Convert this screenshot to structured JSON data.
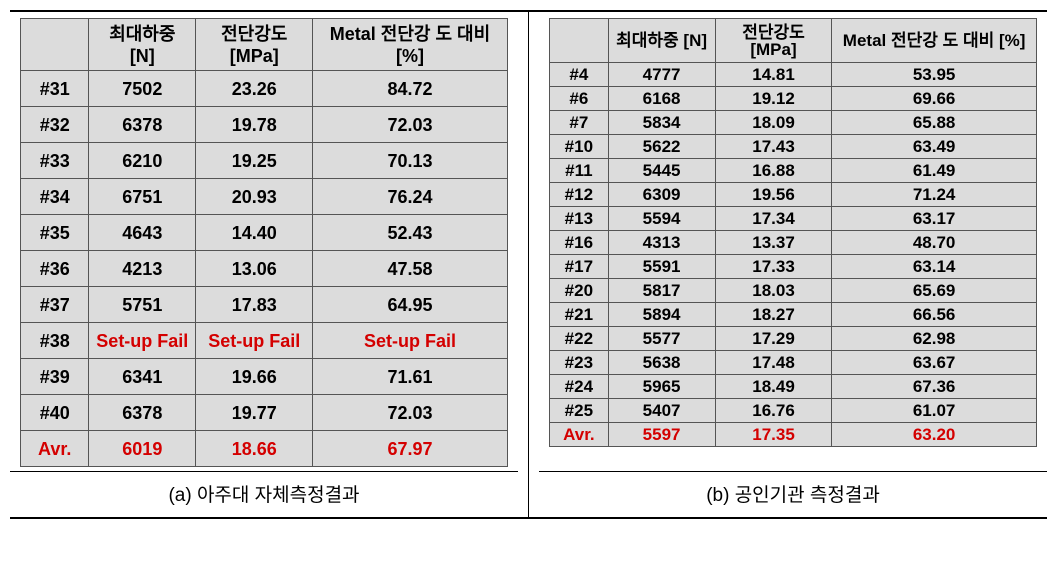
{
  "headers": {
    "id": "",
    "max_load": "최대하중\n[N]",
    "shear": "전단강도\n[MPa]",
    "metal_pct": "Metal 전단강\n도 대비 [%]"
  },
  "captions": {
    "a": "(a) 아주대 자체측정결과",
    "b": "(b) 공인기관 측정결과"
  },
  "tableA": {
    "rows": [
      {
        "id": "#31",
        "load": "7502",
        "shear": "23.26",
        "pct": "84.72",
        "red": false
      },
      {
        "id": "#32",
        "load": "6378",
        "shear": "19.78",
        "pct": "72.03",
        "red": false
      },
      {
        "id": "#33",
        "load": "6210",
        "shear": "19.25",
        "pct": "70.13",
        "red": false
      },
      {
        "id": "#34",
        "load": "6751",
        "shear": "20.93",
        "pct": "76.24",
        "red": false
      },
      {
        "id": "#35",
        "load": "4643",
        "shear": "14.40",
        "pct": "52.43",
        "red": false
      },
      {
        "id": "#36",
        "load": "4213",
        "shear": "13.06",
        "pct": "47.58",
        "red": false
      },
      {
        "id": "#37",
        "load": "5751",
        "shear": "17.83",
        "pct": "64.95",
        "red": false
      },
      {
        "id": "#38",
        "load": "Set-up Fail",
        "shear": "Set-up Fail",
        "pct": "Set-up Fail",
        "red": true,
        "id_red": false
      },
      {
        "id": "#39",
        "load": "6341",
        "shear": "19.66",
        "pct": "71.61",
        "red": false
      },
      {
        "id": "#40",
        "load": "6378",
        "shear": "19.77",
        "pct": "72.03",
        "red": false
      },
      {
        "id": "Avr.",
        "load": "6019",
        "shear": "18.66",
        "pct": "67.97",
        "red": true,
        "id_red": true
      }
    ]
  },
  "tableB": {
    "rows": [
      {
        "id": "#4",
        "load": "4777",
        "shear": "14.81",
        "pct": "53.95",
        "red": false
      },
      {
        "id": "#6",
        "load": "6168",
        "shear": "19.12",
        "pct": "69.66",
        "red": false
      },
      {
        "id": "#7",
        "load": "5834",
        "shear": "18.09",
        "pct": "65.88",
        "red": false
      },
      {
        "id": "#10",
        "load": "5622",
        "shear": "17.43",
        "pct": "63.49",
        "red": false
      },
      {
        "id": "#11",
        "load": "5445",
        "shear": "16.88",
        "pct": "61.49",
        "red": false
      },
      {
        "id": "#12",
        "load": "6309",
        "shear": "19.56",
        "pct": "71.24",
        "red": false
      },
      {
        "id": "#13",
        "load": "5594",
        "shear": "17.34",
        "pct": "63.17",
        "red": false
      },
      {
        "id": "#16",
        "load": "4313",
        "shear": "13.37",
        "pct": "48.70",
        "red": false
      },
      {
        "id": "#17",
        "load": "5591",
        "shear": "17.33",
        "pct": "63.14",
        "red": false
      },
      {
        "id": "#20",
        "load": "5817",
        "shear": "18.03",
        "pct": "65.69",
        "red": false
      },
      {
        "id": "#21",
        "load": "5894",
        "shear": "18.27",
        "pct": "66.56",
        "red": false
      },
      {
        "id": "#22",
        "load": "5577",
        "shear": "17.29",
        "pct": "62.98",
        "red": false
      },
      {
        "id": "#23",
        "load": "5638",
        "shear": "17.48",
        "pct": "63.67",
        "red": false
      },
      {
        "id": "#24",
        "load": "5965",
        "shear": "18.49",
        "pct": "67.36",
        "red": false
      },
      {
        "id": "#25",
        "load": "5407",
        "shear": "16.76",
        "pct": "61.07",
        "red": false
      },
      {
        "id": "Avr.",
        "load": "5597",
        "shear": "17.35",
        "pct": "63.20",
        "red": true,
        "id_red": true
      }
    ]
  }
}
